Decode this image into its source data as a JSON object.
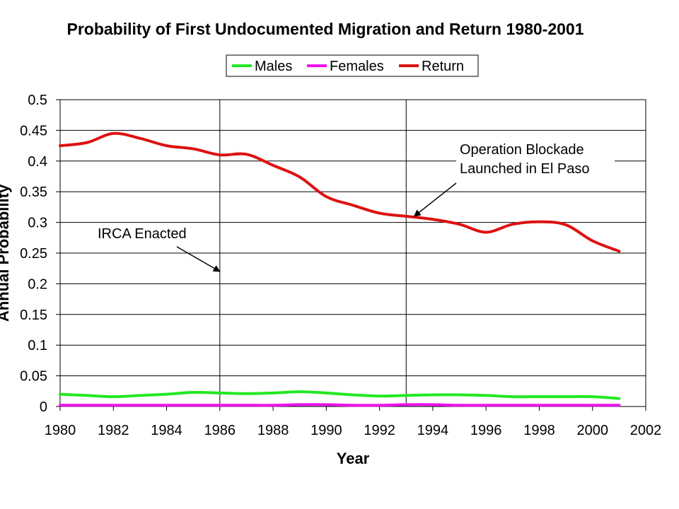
{
  "chart_data": {
    "type": "line",
    "title": "Probability of First Undocumented Migration and Return 1980-2001",
    "xlabel": "Year",
    "ylabel": "Annual Probability",
    "xlim": [
      1980,
      2002
    ],
    "ylim": [
      0,
      0.5
    ],
    "x_ticks": [
      "1980",
      "1982",
      "1984",
      "1986",
      "1988",
      "1990",
      "1992",
      "1994",
      "1996",
      "1998",
      "2000",
      "2002"
    ],
    "y_ticks": [
      "0",
      "0.05",
      "0.1",
      "0.15",
      "0.2",
      "0.25",
      "0.3",
      "0.35",
      "0.4",
      "0.45",
      "0.5"
    ],
    "grid": "horizontal",
    "legend_position": "top",
    "x": [
      1980,
      1981,
      1982,
      1983,
      1984,
      1985,
      1986,
      1987,
      1988,
      1989,
      1990,
      1991,
      1992,
      1993,
      1994,
      1995,
      1996,
      1997,
      1998,
      1999,
      2000,
      2001
    ],
    "series": [
      {
        "name": "Males",
        "color": "#22e822",
        "values": [
          0.02,
          0.018,
          0.016,
          0.018,
          0.02,
          0.023,
          0.022,
          0.021,
          0.022,
          0.024,
          0.022,
          0.019,
          0.017,
          0.018,
          0.019,
          0.019,
          0.018,
          0.016,
          0.016,
          0.016,
          0.016,
          0.013
        ]
      },
      {
        "name": "Females",
        "color": "#ee11ee",
        "values": [
          0.002,
          0.002,
          0.002,
          0.002,
          0.002,
          0.002,
          0.002,
          0.002,
          0.002,
          0.003,
          0.003,
          0.002,
          0.002,
          0.003,
          0.003,
          0.002,
          0.002,
          0.002,
          0.002,
          0.002,
          0.002,
          0.002
        ]
      },
      {
        "name": "Return",
        "color": "#dd1111",
        "values": [
          0.425,
          0.43,
          0.445,
          0.437,
          0.425,
          0.42,
          0.41,
          0.411,
          0.393,
          0.374,
          0.342,
          0.328,
          0.315,
          0.31,
          0.305,
          0.297,
          0.284,
          0.297,
          0.301,
          0.296,
          0.27,
          0.253
        ]
      }
    ],
    "vertical_markers": [
      1986,
      1993
    ],
    "annotations": [
      {
        "lines": [
          "IRCA Enacted"
        ],
        "points_to": [
          1986,
          0.22
        ]
      },
      {
        "lines": [
          "Operation Blockade",
          "Launched in El Paso"
        ],
        "points_to": [
          1993.3,
          0.31
        ]
      }
    ]
  }
}
